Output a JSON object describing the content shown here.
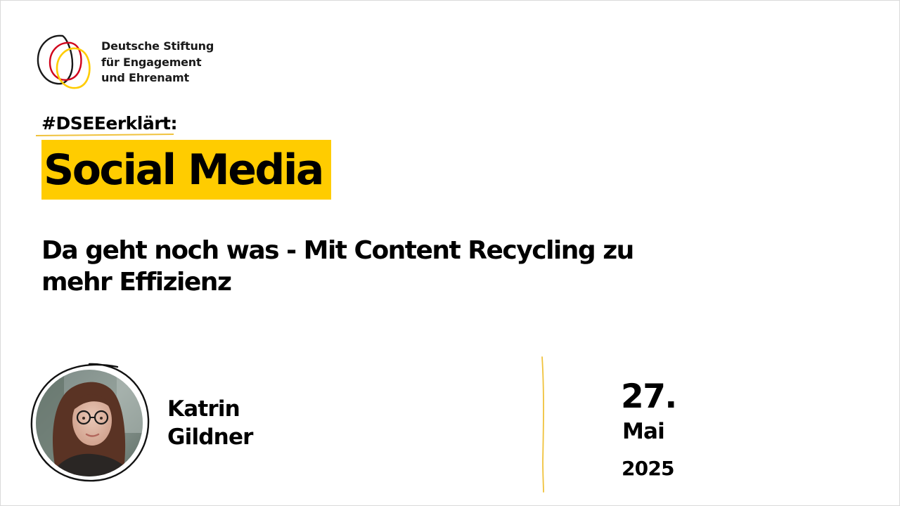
{
  "organization": {
    "name_lines": [
      "Deutsche Stiftung",
      "für Engagement",
      "und Ehrenamt"
    ],
    "logo_icon": "dsee-logo-icon",
    "logo_colors": {
      "black": "#1a1a1a",
      "red": "#d0021b",
      "gold": "#ffcc00"
    }
  },
  "series": {
    "hashtag": "#DSEEerklärt:",
    "underline_color": "#f0c23c"
  },
  "topic": {
    "label": "Social Media",
    "highlight_color": "#ffcc00"
  },
  "talk": {
    "title_lines": [
      "Da geht noch was - Mit Content Recycling zu",
      "mehr Effizienz"
    ]
  },
  "speaker": {
    "first_name": "Katrin",
    "last_name": "Gildner",
    "avatar_icon": "speaker-photo"
  },
  "date": {
    "day": "27.",
    "month": "Mai",
    "year": "2025"
  },
  "divider_color": "#f0c23c"
}
